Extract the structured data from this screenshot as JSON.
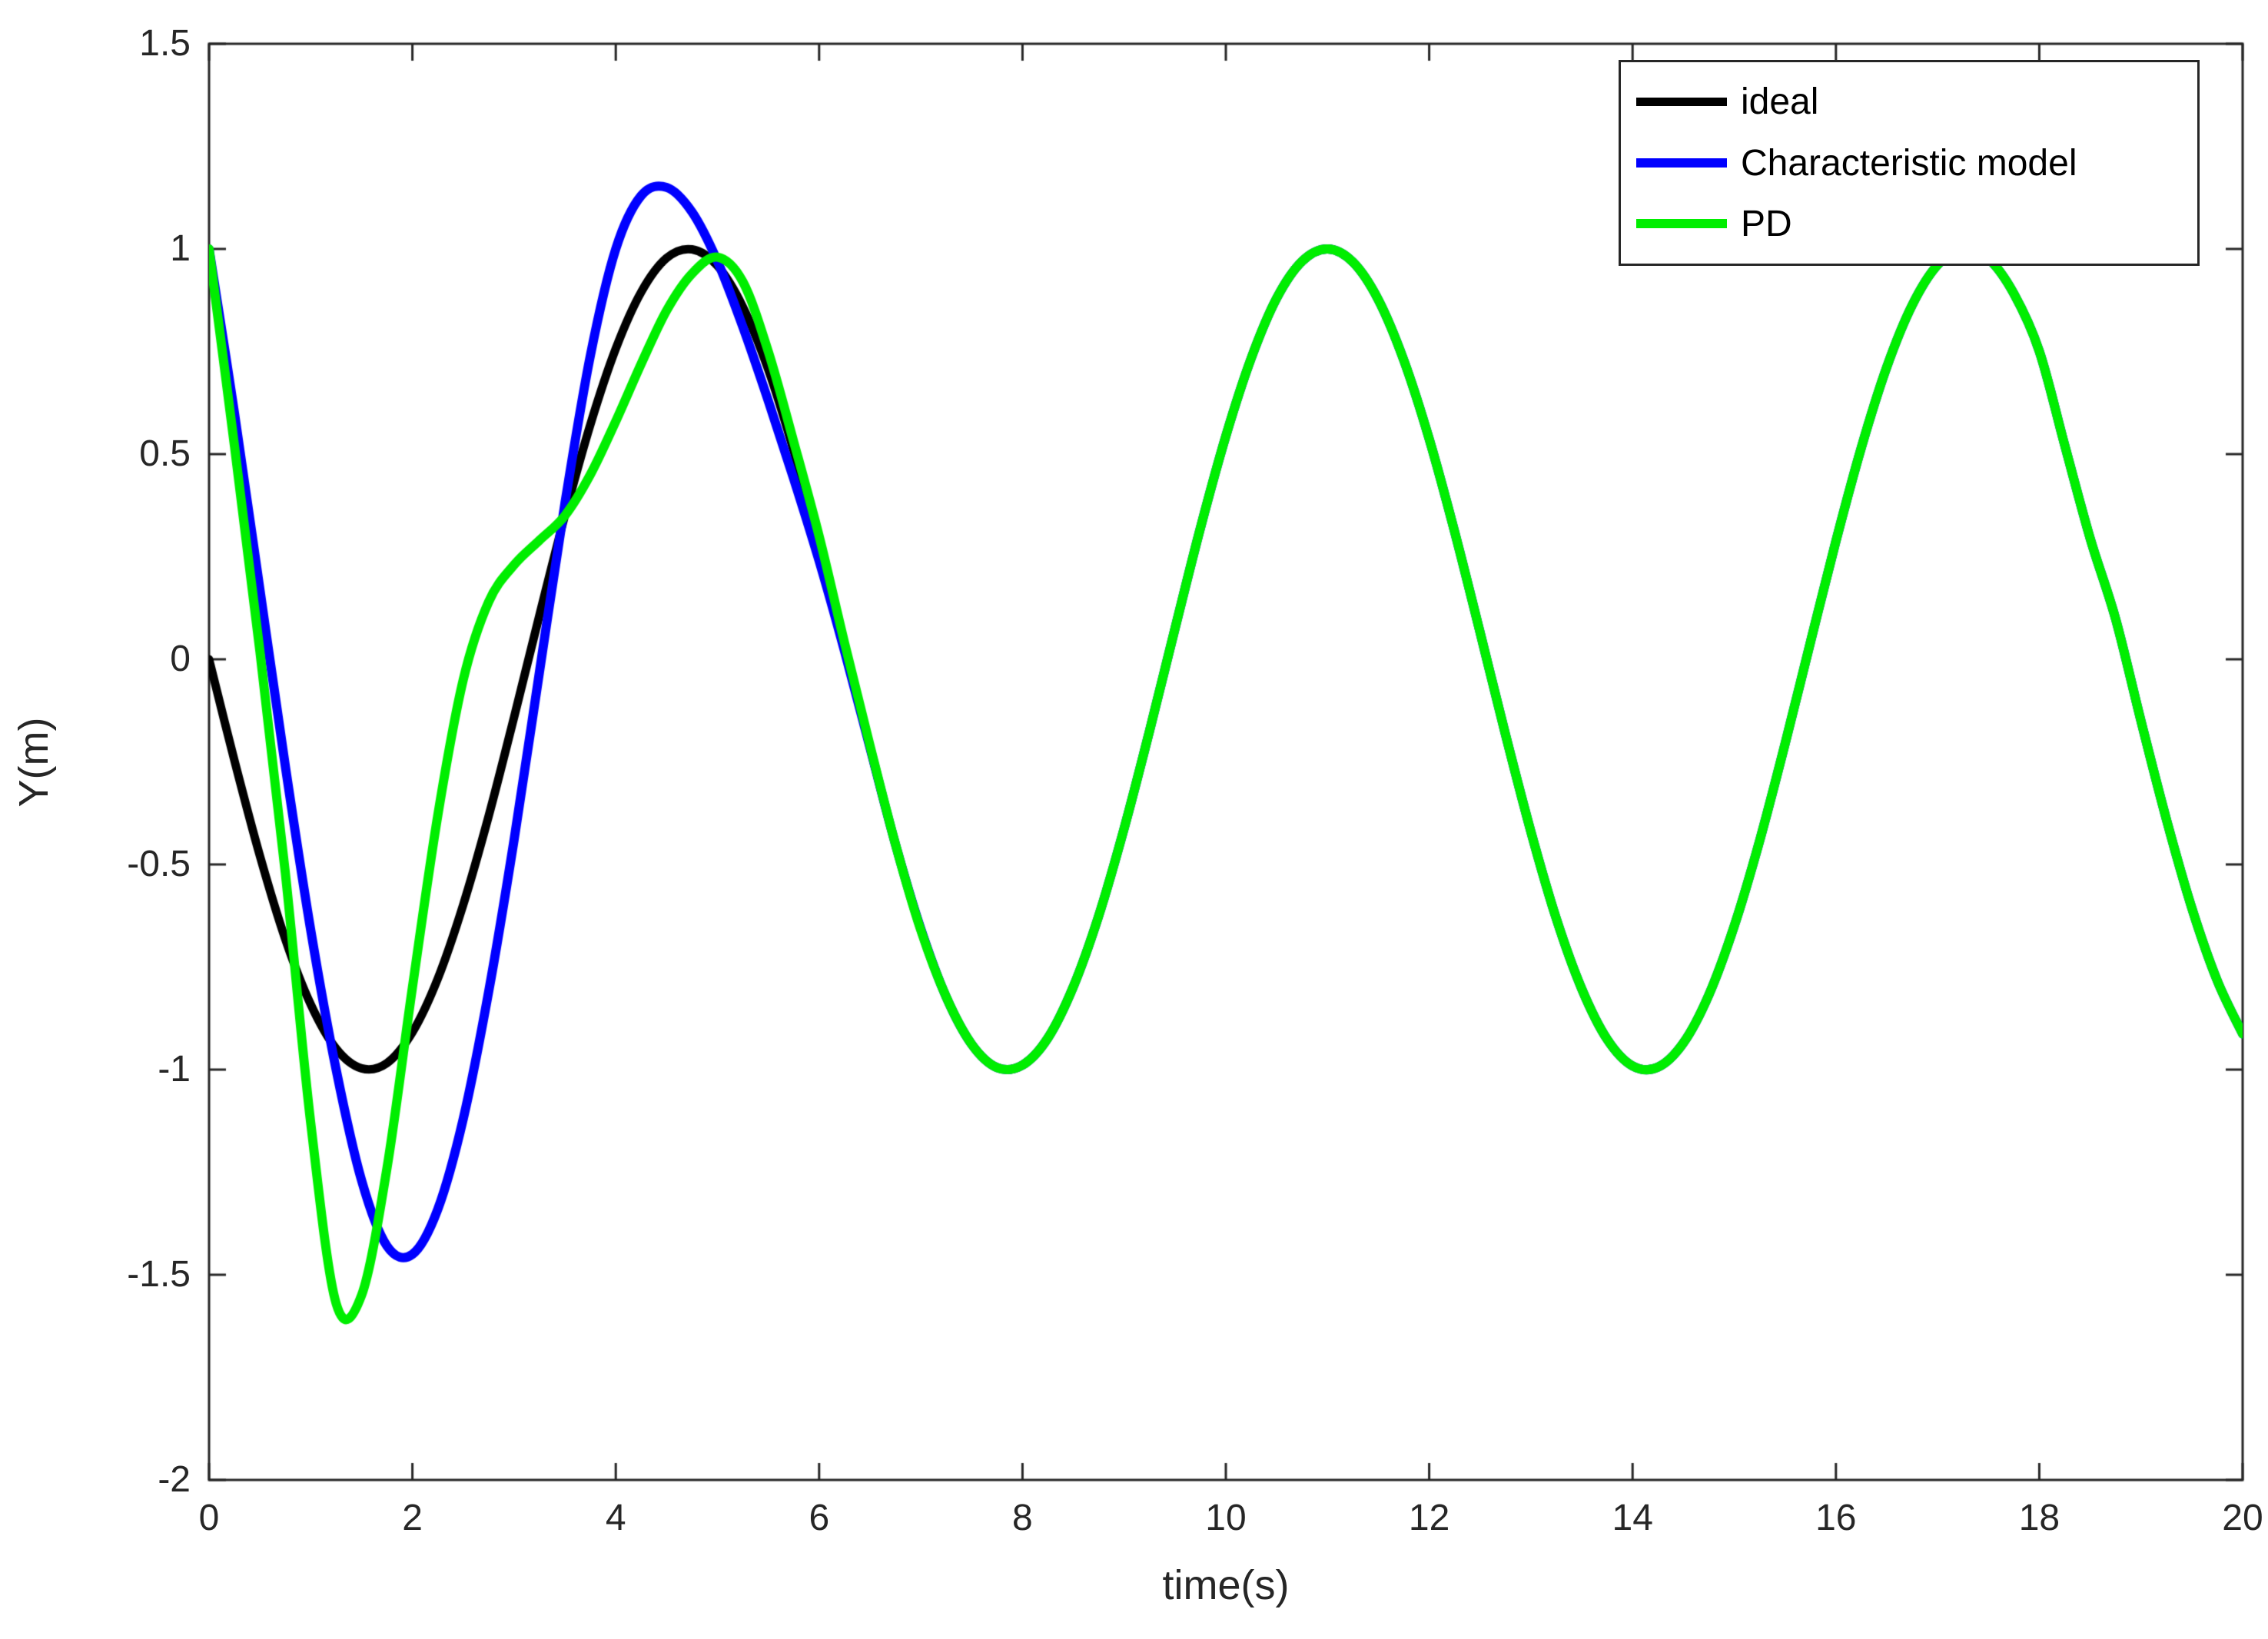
{
  "figure": {
    "background": "#ffffff",
    "axes_color": "#262626",
    "tick_label_color": "#262626"
  },
  "chart_data": {
    "type": "line",
    "title": "",
    "xlabel": "time(s)",
    "ylabel": "Y(m)",
    "xlim": [
      0,
      20
    ],
    "ylim": [
      -2,
      1.5
    ],
    "x_ticks": [
      0,
      2,
      4,
      6,
      8,
      10,
      12,
      14,
      16,
      18,
      20
    ],
    "y_ticks": [
      1.5,
      1,
      0.5,
      0,
      -0.5,
      -1,
      -1.5,
      -2
    ],
    "grid": false,
    "legend_position": "top-right",
    "x": [
      0,
      0.25,
      0.5,
      0.75,
      1,
      1.25,
      1.5,
      1.75,
      2,
      2.25,
      2.5,
      2.75,
      3,
      3.25,
      3.5,
      3.75,
      4,
      4.25,
      4.5,
      4.75,
      5,
      5.25,
      5.5,
      5.75,
      6,
      6.25,
      6.5,
      6.75,
      7,
      7.25,
      7.5,
      7.75,
      8,
      8.25,
      8.5,
      8.75,
      9,
      9.25,
      9.5,
      9.75,
      10,
      10.25,
      10.5,
      10.75,
      11,
      11.25,
      11.5,
      11.75,
      12,
      12.25,
      12.5,
      12.75,
      13,
      13.25,
      13.5,
      13.75,
      14,
      14.25,
      14.5,
      14.75,
      15,
      15.25,
      15.5,
      15.75,
      16,
      16.25,
      16.5,
      16.75,
      17,
      17.25,
      17.5,
      17.75,
      18,
      18.25,
      18.5,
      18.75,
      19,
      19.25,
      19.5,
      19.75,
      20
    ],
    "series": [
      {
        "name": "ideal",
        "color": "#000000",
        "line_width": 11,
        "y": [
          0,
          -0.247,
          -0.479,
          -0.682,
          -0.841,
          -0.949,
          -0.997,
          -0.984,
          -0.909,
          -0.778,
          -0.598,
          -0.382,
          -0.141,
          0.108,
          0.351,
          0.572,
          0.757,
          0.895,
          0.978,
          0.999,
          0.959,
          0.859,
          0.706,
          0.508,
          0.279,
          0.033,
          -0.215,
          -0.45,
          -0.657,
          -0.823,
          -0.938,
          -0.995,
          -0.989,
          -0.923,
          -0.798,
          -0.625,
          -0.412,
          -0.174,
          0.075,
          0.32,
          0.544,
          0.734,
          0.88,
          0.97,
          1,
          0.968,
          0.876,
          0.729,
          0.537,
          0.311,
          0.066,
          -0.183,
          -0.42,
          -0.632,
          -0.803,
          -0.926,
          -0.991,
          -0.994,
          -0.935,
          -0.818,
          -0.65,
          -0.442,
          -0.206,
          0.042,
          0.288,
          0.516,
          0.712,
          0.863,
          0.961,
          1,
          0.976,
          0.891,
          0.751,
          0.522,
          0.295,
          0.099,
          -0.15,
          -0.39,
          -0.606,
          -0.783,
          -0.913
        ]
      },
      {
        "name": "Characteristic model",
        "color": "#0000ff",
        "line_width": 12,
        "y": [
          1,
          0.6,
          0.17,
          -0.26,
          -0.66,
          -1,
          -1.27,
          -1.43,
          -1.45,
          -1.34,
          -1.12,
          -0.81,
          -0.44,
          -0.03,
          0.38,
          0.74,
          1,
          1.13,
          1.15,
          1.09,
          0.97,
          0.81,
          0.63,
          0.44,
          0.24,
          0.02,
          -0.215,
          -0.45,
          -0.657,
          -0.823,
          -0.938,
          -0.995,
          -0.989,
          -0.923,
          -0.798,
          -0.625,
          -0.412,
          -0.174,
          0.075,
          0.32,
          0.544,
          0.734,
          0.88,
          0.97,
          1,
          0.968,
          0.876,
          0.729,
          0.537,
          0.311,
          0.066,
          -0.183,
          -0.42,
          -0.632,
          -0.803,
          -0.926,
          -0.991,
          -0.994,
          -0.935,
          -0.818,
          -0.65,
          -0.442,
          -0.206,
          0.042,
          0.288,
          0.516,
          0.712,
          0.863,
          0.961,
          1,
          0.976,
          0.891,
          0.751,
          0.522,
          0.295,
          0.099,
          -0.15,
          -0.39,
          -0.606,
          -0.783,
          -0.913
        ]
      },
      {
        "name": "PD",
        "color": "#00ee00",
        "line_width": 12,
        "y": [
          1,
          0.52,
          0.02,
          -0.52,
          -1.13,
          -1.57,
          -1.55,
          -1.24,
          -0.8,
          -0.38,
          -0.05,
          0.14,
          0.23,
          0.29,
          0.35,
          0.45,
          0.58,
          0.72,
          0.85,
          0.94,
          0.98,
          0.92,
          0.75,
          0.53,
          0.3,
          0.04,
          -0.21,
          -0.45,
          -0.66,
          -0.823,
          -0.938,
          -0.995,
          -0.989,
          -0.923,
          -0.798,
          -0.625,
          -0.412,
          -0.174,
          0.075,
          0.32,
          0.544,
          0.734,
          0.88,
          0.97,
          1,
          0.968,
          0.876,
          0.729,
          0.537,
          0.311,
          0.066,
          -0.183,
          -0.42,
          -0.632,
          -0.803,
          -0.926,
          -0.991,
          -0.994,
          -0.935,
          -0.818,
          -0.65,
          -0.442,
          -0.206,
          0.042,
          0.288,
          0.516,
          0.712,
          0.863,
          0.961,
          1,
          0.976,
          0.891,
          0.751,
          0.522,
          0.295,
          0.099,
          -0.15,
          -0.39,
          -0.606,
          -0.783,
          -0.913
        ]
      }
    ]
  }
}
